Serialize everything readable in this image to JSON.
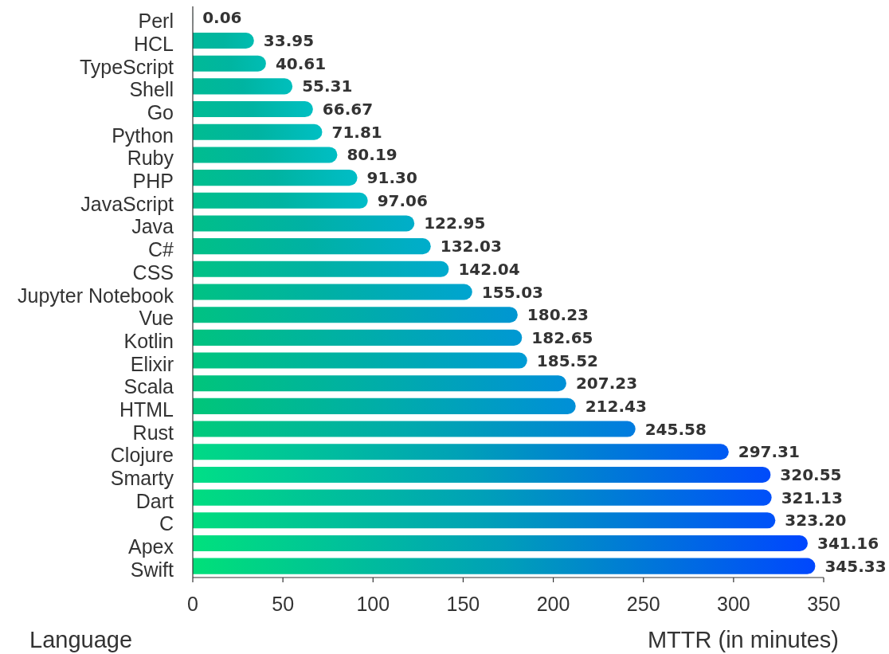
{
  "chart_data": {
    "type": "bar",
    "orientation": "horizontal",
    "xlabel": "MTTR (in minutes)",
    "ylabel": "Language",
    "categories": [
      "Perl",
      "HCL",
      "TypeScript",
      "Shell",
      "Go",
      "Python",
      "Ruby",
      "PHP",
      "JavaScript",
      "Java",
      "C#",
      "CSS",
      "Jupyter Notebook",
      "Vue",
      "Kotlin",
      "Elixir",
      "Scala",
      "HTML",
      "Rust",
      "Clojure",
      "Smarty",
      "Dart",
      "C",
      "Apex",
      "Swift"
    ],
    "values": [
      0.06,
      33.95,
      40.61,
      55.31,
      66.67,
      71.81,
      80.19,
      91.3,
      97.06,
      122.95,
      132.03,
      142.04,
      155.03,
      180.23,
      182.65,
      185.52,
      207.23,
      212.43,
      245.58,
      297.31,
      320.55,
      321.13,
      323.2,
      341.16,
      345.33
    ],
    "value_labels": [
      "0.06",
      "33.95",
      "40.61",
      "55.31",
      "66.67",
      "71.81",
      "80.19",
      "91.30",
      "97.06",
      "122.95",
      "132.03",
      "142.04",
      "155.03",
      "180.23",
      "182.65",
      "185.52",
      "207.23",
      "212.43",
      "245.58",
      "297.31",
      "320.55",
      "321.13",
      "323.20",
      "341.16",
      "345.33"
    ],
    "colors": [
      "#00ba9b",
      "#00b5a0",
      "#00b5a0",
      "#00b4a1",
      "#00b4a2",
      "#00b4a1",
      "#00b4a1",
      "#00b4a1",
      "#00b4a1",
      "#00b1a4",
      "#00b1a4",
      "#00b1a5",
      "#00b0a6",
      "#00ada9",
      "#00aea8",
      "#00afa7",
      "#00ada9",
      "#00ada9",
      "#00a9ae",
      "#00a1b7",
      "#009eba",
      "#00a0b8",
      "#00a1b7",
      "#009fb9",
      "#00a0b8"
    ],
    "xlim": [
      0,
      350
    ],
    "xticks": [
      0,
      50,
      100,
      150,
      200,
      250,
      300,
      350
    ]
  }
}
